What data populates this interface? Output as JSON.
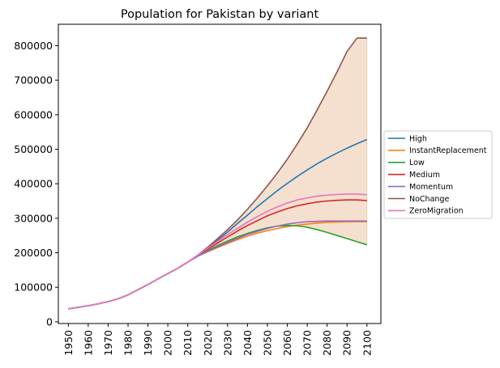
{
  "chart_data": {
    "type": "line",
    "title": "Population for Pakistan by variant",
    "xlabel": "",
    "ylabel": "",
    "xlim": [
      1945,
      2107
    ],
    "ylim": [
      -5000,
      862000
    ],
    "xticks": [
      1950,
      1960,
      1970,
      1980,
      1990,
      2000,
      2010,
      2020,
      2030,
      2040,
      2050,
      2060,
      2070,
      2080,
      2090,
      2100
    ],
    "yticks": [
      0,
      100000,
      200000,
      300000,
      400000,
      500000,
      600000,
      700000,
      800000
    ],
    "legend_position": "center-right-outside",
    "band": {
      "between": [
        "Low",
        "NoChange"
      ],
      "color": "#f5e0cf",
      "from_x": 2010
    },
    "x": [
      1950,
      1955,
      1960,
      1965,
      1970,
      1975,
      1980,
      1985,
      1990,
      1995,
      2000,
      2005,
      2010,
      2015,
      2020,
      2025,
      2030,
      2035,
      2040,
      2045,
      2050,
      2055,
      2060,
      2065,
      2070,
      2075,
      2080,
      2085,
      2090,
      2095,
      2100
    ],
    "series": [
      {
        "name": "High",
        "color": "#1f77b4",
        "values": [
          37500,
          42000,
          46500,
          52000,
          58500,
          66500,
          78000,
          93000,
          108000,
          124000,
          139500,
          155000,
          173000,
          193000,
          213000,
          236000,
          260000,
          285000,
          309000,
          334000,
          357000,
          380000,
          401000,
          421000,
          440000,
          458000,
          474000,
          489000,
          503000,
          516000,
          528000
        ]
      },
      {
        "name": "InstantReplacement",
        "color": "#ff7f0e",
        "values": [
          37500,
          42000,
          46500,
          52000,
          58500,
          66500,
          78000,
          93000,
          108000,
          124000,
          139500,
          155000,
          173000,
          190000,
          203000,
          215000,
          227000,
          238000,
          248000,
          257000,
          264000,
          270000,
          276000,
          280000,
          283000,
          286000,
          288000,
          289000,
          290000,
          290000,
          290000
        ]
      },
      {
        "name": "Low",
        "color": "#2ca02c",
        "values": [
          37500,
          42000,
          46500,
          52000,
          58500,
          66500,
          78000,
          93000,
          108000,
          124000,
          139500,
          155000,
          173000,
          191000,
          206000,
          221000,
          234000,
          246000,
          256000,
          265000,
          272000,
          277000,
          279000,
          278000,
          274000,
          267000,
          259000,
          250000,
          241000,
          232000,
          223000
        ]
      },
      {
        "name": "Medium",
        "color": "#d62728",
        "values": [
          37500,
          42000,
          46500,
          52000,
          58500,
          66500,
          78000,
          93000,
          108000,
          124000,
          139500,
          155000,
          173000,
          192000,
          210000,
          228000,
          246000,
          263000,
          279000,
          293000,
          307000,
          318000,
          328000,
          336000,
          342000,
          347000,
          350000,
          352000,
          353000,
          353000,
          351000
        ]
      },
      {
        "name": "Momentum",
        "color": "#9467bd",
        "values": [
          37500,
          42000,
          46500,
          52000,
          58500,
          66500,
          78000,
          93000,
          108000,
          124000,
          139500,
          155000,
          173000,
          190000,
          204000,
          217000,
          230000,
          242000,
          253000,
          262000,
          270000,
          277000,
          283000,
          287000,
          290000,
          291000,
          292000,
          292000,
          292000,
          292000,
          292000
        ]
      },
      {
        "name": "NoChange",
        "color": "#8c564b",
        "values": [
          37500,
          42000,
          46500,
          52000,
          58500,
          66500,
          78000,
          93000,
          108000,
          124000,
          139500,
          155000,
          173000,
          193000,
          216000,
          241000,
          267000,
          295000,
          326000,
          359000,
          394000,
          431000,
          471000,
          515000,
          562000,
          614000,
          668000,
          724000,
          783000,
          822000,
          822000
        ]
      },
      {
        "name": "ZeroMigration",
        "color": "#e377c2",
        "values": [
          37500,
          42000,
          46500,
          52000,
          58500,
          66500,
          78000,
          93000,
          108000,
          124000,
          139500,
          155000,
          173000,
          193000,
          213000,
          233000,
          253000,
          271000,
          289000,
          305000,
          320000,
          333000,
          344000,
          353000,
          359000,
          364000,
          367000,
          369000,
          370000,
          370000,
          368000
        ]
      }
    ]
  }
}
